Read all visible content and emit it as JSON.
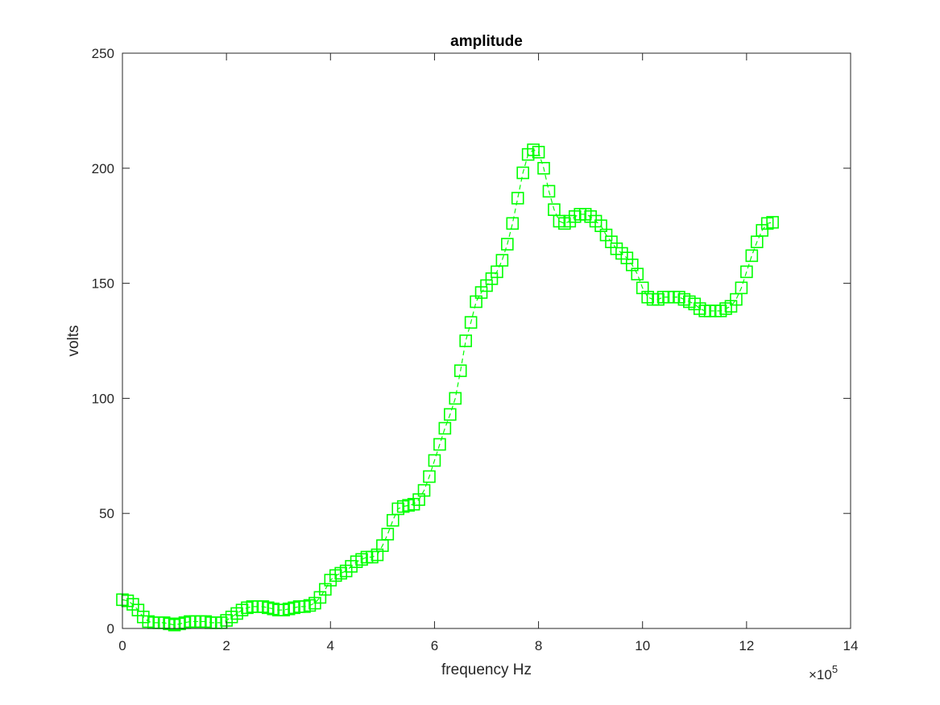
{
  "colors": {
    "series": "#00ff00",
    "axes": "#262626",
    "background": "#ffffff"
  },
  "chart_data": {
    "type": "line",
    "title": "amplitude",
    "xlabel": "frequency Hz",
    "ylabel": "volts",
    "x_exponent_label": "×10",
    "x_exponent_power": "5",
    "xlim": [
      0,
      14
    ],
    "ylim": [
      0,
      250
    ],
    "x_scale_factor": 100000,
    "xticks": [
      0,
      2,
      4,
      6,
      8,
      10,
      12,
      14
    ],
    "yticks": [
      0,
      50,
      100,
      150,
      200,
      250
    ],
    "xtick_labels": [
      "0",
      "2",
      "4",
      "6",
      "8",
      "10",
      "12",
      "14"
    ],
    "ytick_labels": [
      "0",
      "50",
      "100",
      "150",
      "200",
      "250"
    ],
    "grid": false,
    "box": true,
    "marker": "square",
    "line_style": "dashed",
    "series": [
      {
        "x": [
          0.0,
          0.1,
          0.2,
          0.3,
          0.4,
          0.5,
          0.6,
          0.7,
          0.8,
          0.9,
          1.0,
          1.1,
          1.2,
          1.3,
          1.4,
          1.5,
          1.6,
          1.7,
          1.8,
          1.9,
          2.0,
          2.1,
          2.2,
          2.3,
          2.4,
          2.5,
          2.6,
          2.7,
          2.8,
          2.9,
          3.0,
          3.1,
          3.2,
          3.3,
          3.4,
          3.5,
          3.6,
          3.7,
          3.8,
          3.9,
          4.0,
          4.1,
          4.2,
          4.3,
          4.4,
          4.5,
          4.6,
          4.7,
          4.8,
          4.9,
          5.0,
          5.1,
          5.2,
          5.3,
          5.4,
          5.5,
          5.6,
          5.7,
          5.8,
          5.9,
          6.0,
          6.1,
          6.2,
          6.3,
          6.4,
          6.5,
          6.6,
          6.7,
          6.8,
          6.9,
          7.0,
          7.1,
          7.2,
          7.3,
          7.4,
          7.5,
          7.6,
          7.7,
          7.8,
          7.9,
          8.0,
          8.1,
          8.2,
          8.3,
          8.4,
          8.5,
          8.6,
          8.7,
          8.8,
          8.9,
          9.0,
          9.1,
          9.2,
          9.3,
          9.4,
          9.5,
          9.6,
          9.7,
          9.8,
          9.9,
          10.0,
          10.1,
          10.2,
          10.3,
          10.4,
          10.5,
          10.6,
          10.7,
          10.8,
          10.9,
          11.0,
          11.1,
          11.2,
          11.3,
          11.4,
          11.5,
          11.6,
          11.7,
          11.8,
          11.9,
          12.0,
          12.1,
          12.2,
          12.3,
          12.4,
          12.5
        ],
        "y": [
          12.5,
          12,
          10.5,
          8,
          5,
          3,
          2.5,
          2.5,
          2.5,
          2,
          1.5,
          2,
          2.5,
          3,
          3,
          3,
          3,
          2.5,
          2.5,
          2.5,
          3.5,
          5,
          6.5,
          8,
          9,
          9.5,
          9.5,
          9.5,
          9,
          8.5,
          8,
          8,
          8.5,
          9,
          9.5,
          9.5,
          10,
          11,
          13.5,
          17,
          21,
          23,
          24,
          25,
          27,
          29,
          30,
          31,
          31,
          32,
          36,
          41,
          47,
          52,
          53,
          53.5,
          54,
          56,
          60,
          66,
          73,
          80,
          87,
          93,
          100,
          112,
          125,
          133,
          142,
          146,
          149,
          152,
          155,
          160,
          167,
          176,
          187,
          198,
          206,
          208,
          207,
          200,
          190,
          182,
          177,
          176,
          177,
          179,
          180,
          180,
          179,
          177,
          175,
          171,
          168,
          165,
          163,
          161,
          158,
          154,
          148,
          144,
          143,
          143,
          144,
          144,
          144,
          144,
          143,
          142,
          141,
          139,
          138,
          138,
          138,
          138,
          139,
          140,
          143,
          148,
          155,
          162,
          168,
          173,
          176,
          176.5
        ]
      }
    ]
  }
}
